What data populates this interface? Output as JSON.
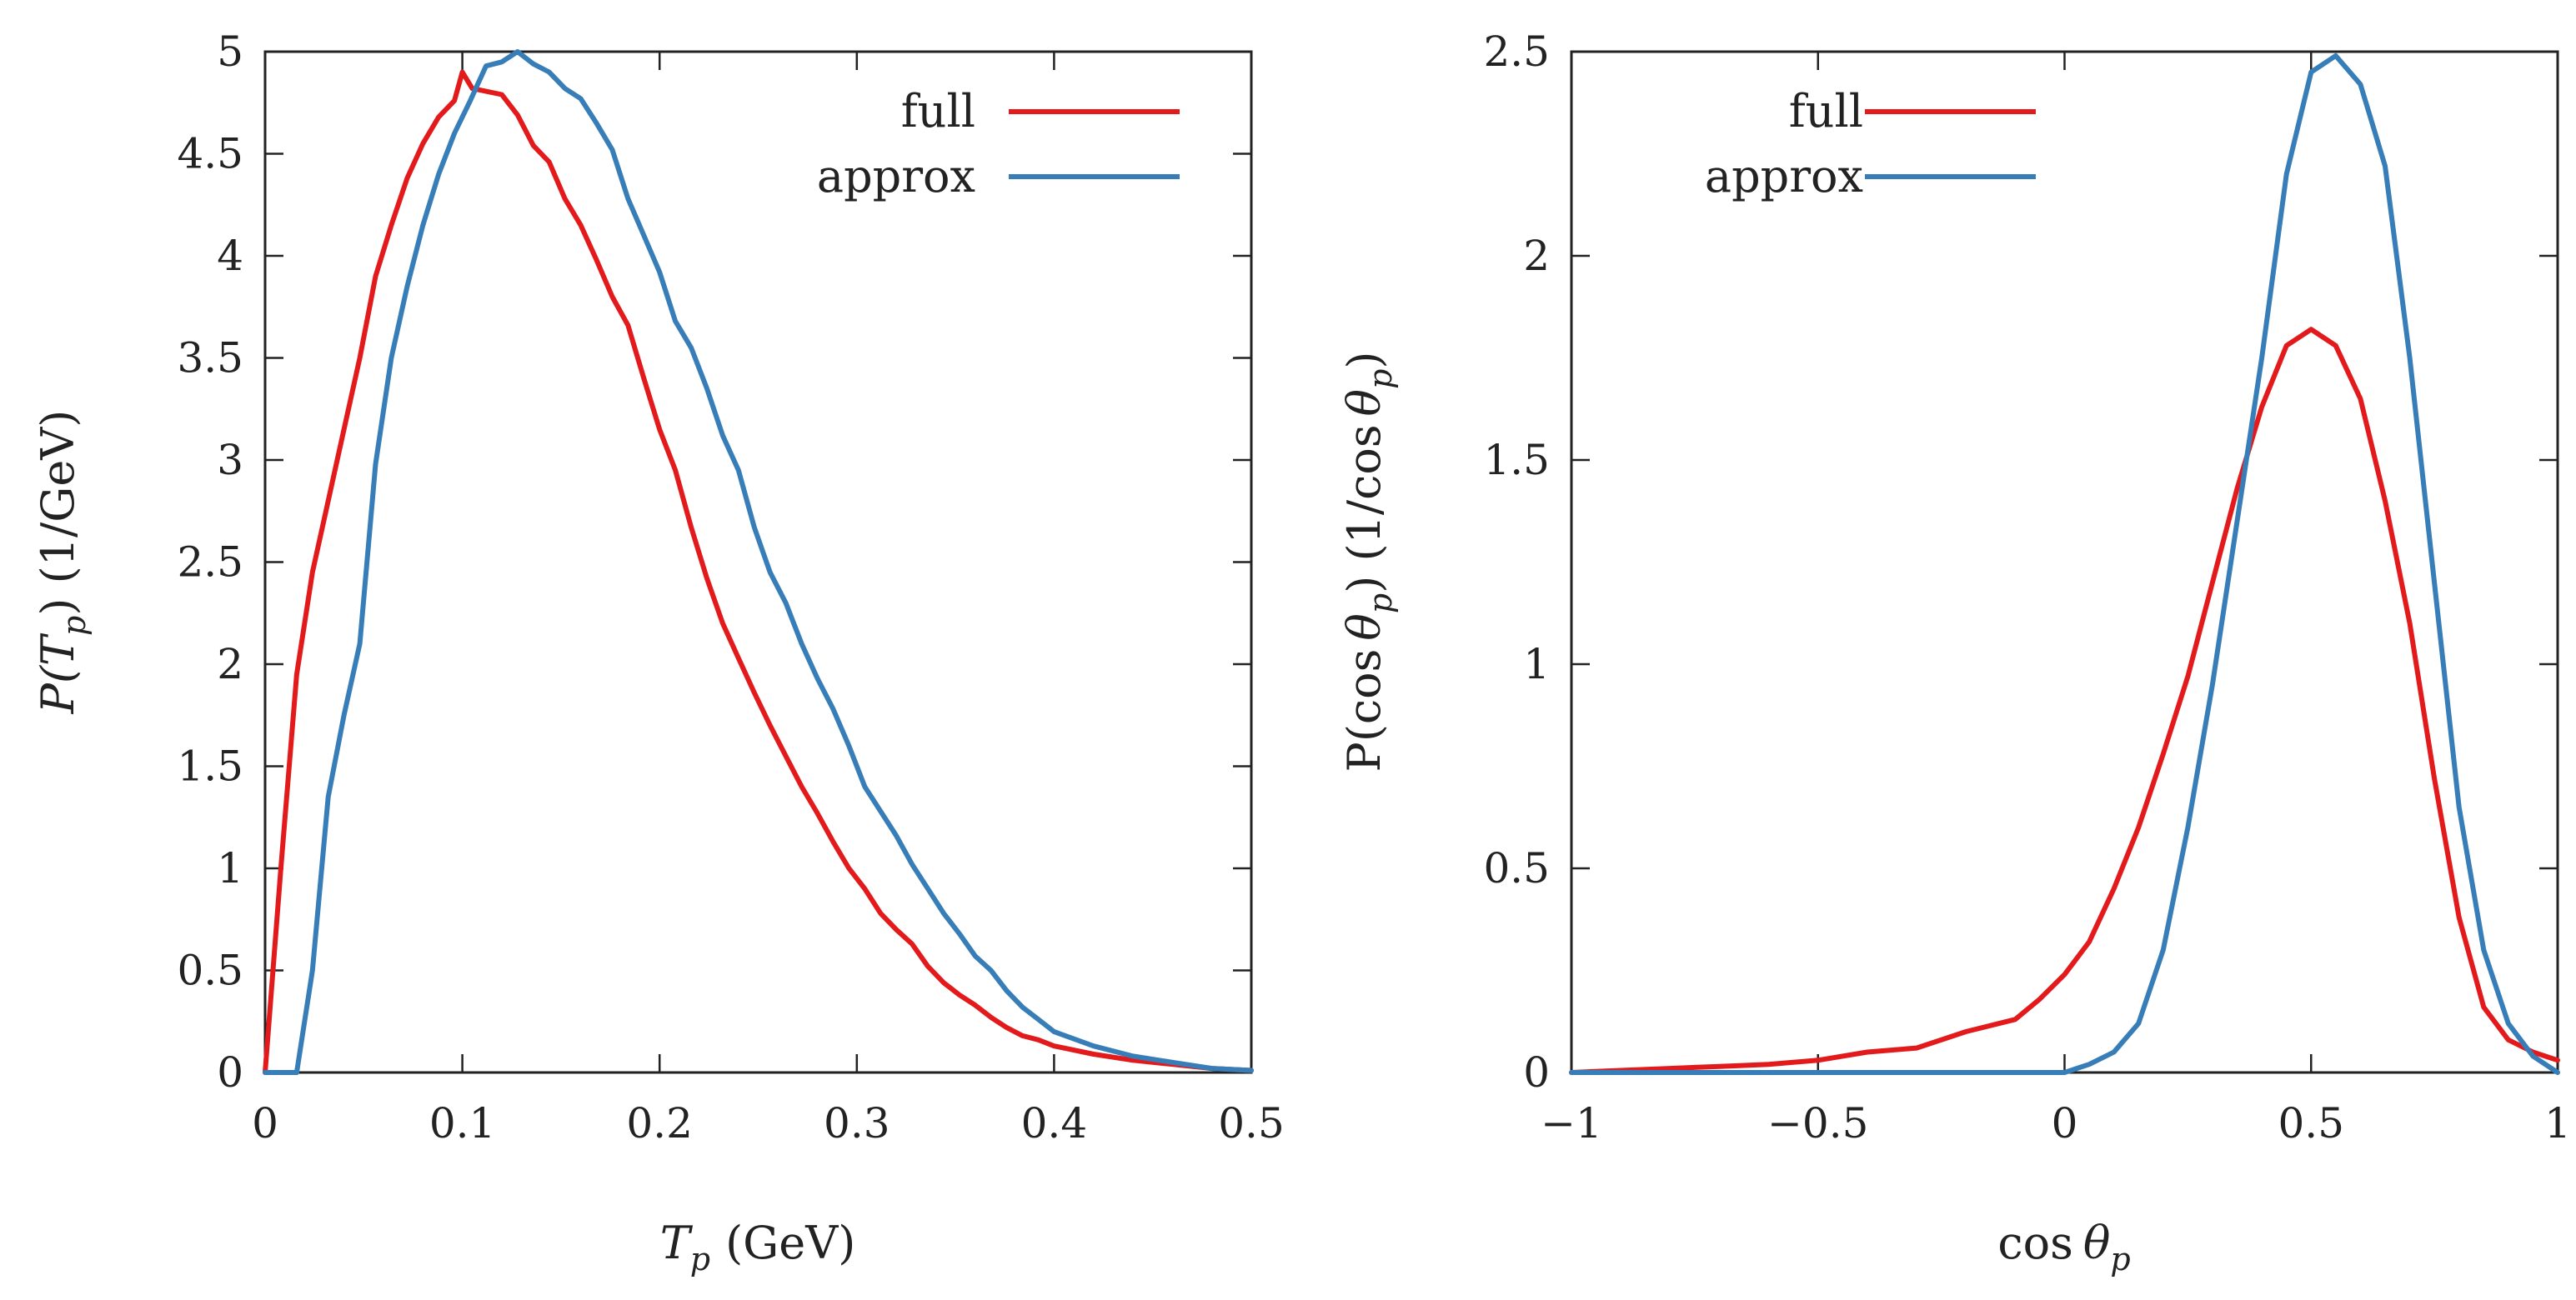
{
  "chart_data": [
    {
      "type": "line",
      "title": "",
      "xlabel_var": "T",
      "xlabel_sub": "p",
      "xlabel_units": "(GeV)",
      "ylabel_func": "P(T",
      "ylabel_sub": "p",
      "ylabel_units": ") (1/GeV)",
      "xlim": [
        0,
        0.5
      ],
      "ylim": [
        0,
        5
      ],
      "xticks": [
        0,
        0.1,
        0.2,
        0.3,
        0.4,
        0.5
      ],
      "xtick_labels": [
        "0",
        "0.1",
        "0.2",
        "0.3",
        "0.4",
        "0.5"
      ],
      "yticks": [
        0,
        0.5,
        1,
        1.5,
        2,
        2.5,
        3,
        3.5,
        4,
        4.5,
        5
      ],
      "ytick_labels": [
        "0",
        "0.5",
        "1",
        "1.5",
        "2",
        "2.5",
        "3",
        "3.5",
        "4",
        "4.5",
        "5"
      ],
      "grid": false,
      "legend": "top-right",
      "series": [
        {
          "name": "full",
          "color": "#e31a1c",
          "x": [
            0,
            0.008,
            0.016,
            0.024,
            0.032,
            0.04,
            0.048,
            0.056,
            0.064,
            0.072,
            0.08,
            0.088,
            0.096,
            0.1,
            0.105,
            0.12,
            0.128,
            0.136,
            0.144,
            0.152,
            0.16,
            0.168,
            0.176,
            0.184,
            0.192,
            0.2,
            0.208,
            0.216,
            0.224,
            0.232,
            0.24,
            0.248,
            0.256,
            0.264,
            0.272,
            0.28,
            0.288,
            0.296,
            0.304,
            0.312,
            0.32,
            0.328,
            0.336,
            0.344,
            0.352,
            0.36,
            0.368,
            0.376,
            0.384,
            0.392,
            0.4,
            0.42,
            0.44,
            0.46,
            0.48,
            0.5
          ],
          "y": [
            0,
            1.0,
            1.95,
            2.45,
            2.8,
            3.15,
            3.5,
            3.9,
            4.15,
            4.38,
            4.55,
            4.68,
            4.76,
            4.9,
            4.82,
            4.79,
            4.69,
            4.54,
            4.46,
            4.28,
            4.15,
            3.98,
            3.8,
            3.66,
            3.4,
            3.15,
            2.95,
            2.67,
            2.42,
            2.2,
            2.03,
            1.86,
            1.7,
            1.55,
            1.4,
            1.27,
            1.13,
            1.0,
            0.9,
            0.78,
            0.7,
            0.63,
            0.52,
            0.44,
            0.38,
            0.33,
            0.27,
            0.22,
            0.18,
            0.16,
            0.13,
            0.09,
            0.06,
            0.04,
            0.02,
            0.01
          ]
        },
        {
          "name": "approx",
          "color": "#377eb8",
          "x": [
            0,
            0.016,
            0.024,
            0.032,
            0.04,
            0.048,
            0.056,
            0.064,
            0.072,
            0.08,
            0.088,
            0.096,
            0.104,
            0.112,
            0.12,
            0.128,
            0.136,
            0.144,
            0.152,
            0.16,
            0.168,
            0.176,
            0.184,
            0.192,
            0.2,
            0.208,
            0.216,
            0.224,
            0.232,
            0.24,
            0.248,
            0.256,
            0.264,
            0.272,
            0.28,
            0.288,
            0.296,
            0.304,
            0.312,
            0.32,
            0.328,
            0.336,
            0.344,
            0.352,
            0.36,
            0.368,
            0.376,
            0.384,
            0.392,
            0.4,
            0.42,
            0.44,
            0.46,
            0.48,
            0.5
          ],
          "y": [
            0,
            0,
            0.5,
            1.35,
            1.75,
            2.1,
            2.98,
            3.5,
            3.85,
            4.15,
            4.4,
            4.6,
            4.76,
            4.93,
            4.95,
            5.0,
            4.94,
            4.9,
            4.82,
            4.77,
            4.65,
            4.52,
            4.28,
            4.1,
            3.92,
            3.68,
            3.55,
            3.35,
            3.12,
            2.95,
            2.67,
            2.45,
            2.3,
            2.1,
            1.93,
            1.78,
            1.6,
            1.4,
            1.28,
            1.16,
            1.02,
            0.9,
            0.78,
            0.68,
            0.57,
            0.5,
            0.4,
            0.32,
            0.26,
            0.2,
            0.13,
            0.08,
            0.05,
            0.02,
            0.01
          ]
        }
      ]
    },
    {
      "type": "line",
      "title": "",
      "xlabel_func": "cos",
      "xlabel_var": "θ",
      "xlabel_sub": "p",
      "ylabel_func": "P(cos",
      "ylabel_var": "θ",
      "ylabel_sub": "p",
      "ylabel_units": ") (1/cos",
      "ylabel_units_var": "θ",
      "ylabel_units_sub": "p",
      "ylabel_close": ")",
      "xlim": [
        -1,
        1
      ],
      "ylim": [
        0,
        2.5
      ],
      "xticks": [
        -1,
        -0.5,
        0,
        0.5,
        1
      ],
      "xtick_labels": [
        "−1",
        "−0.5",
        "0",
        "0.5",
        "1"
      ],
      "yticks": [
        0,
        0.5,
        1,
        1.5,
        2,
        2.5
      ],
      "ytick_labels": [
        "0",
        "0.5",
        "1",
        "1.5",
        "2",
        "2.5"
      ],
      "grid": false,
      "legend": "top-right",
      "series": [
        {
          "name": "full",
          "color": "#e31a1c",
          "x": [
            -1,
            -0.9,
            -0.8,
            -0.7,
            -0.6,
            -0.5,
            -0.4,
            -0.3,
            -0.2,
            -0.1,
            -0.05,
            0,
            0.05,
            0.1,
            0.15,
            0.2,
            0.25,
            0.3,
            0.35,
            0.4,
            0.45,
            0.5,
            0.55,
            0.6,
            0.65,
            0.7,
            0.75,
            0.8,
            0.85,
            0.9,
            0.95,
            1.0
          ],
          "y": [
            0,
            0.005,
            0.01,
            0.015,
            0.02,
            0.03,
            0.05,
            0.06,
            0.1,
            0.13,
            0.18,
            0.24,
            0.32,
            0.45,
            0.6,
            0.78,
            0.97,
            1.2,
            1.43,
            1.63,
            1.78,
            1.82,
            1.78,
            1.65,
            1.4,
            1.1,
            0.72,
            0.38,
            0.16,
            0.08,
            0.05,
            0.03
          ]
        },
        {
          "name": "approx",
          "color": "#377eb8",
          "x": [
            -1,
            -0.5,
            0,
            0.05,
            0.1,
            0.15,
            0.2,
            0.25,
            0.3,
            0.35,
            0.4,
            0.45,
            0.5,
            0.55,
            0.6,
            0.65,
            0.7,
            0.75,
            0.8,
            0.85,
            0.9,
            0.95,
            1.0
          ],
          "y": [
            0,
            0,
            0,
            0.02,
            0.05,
            0.12,
            0.3,
            0.6,
            0.95,
            1.35,
            1.75,
            2.2,
            2.45,
            2.49,
            2.42,
            2.22,
            1.75,
            1.2,
            0.65,
            0.3,
            0.12,
            0.04,
            0.0
          ]
        }
      ]
    }
  ]
}
